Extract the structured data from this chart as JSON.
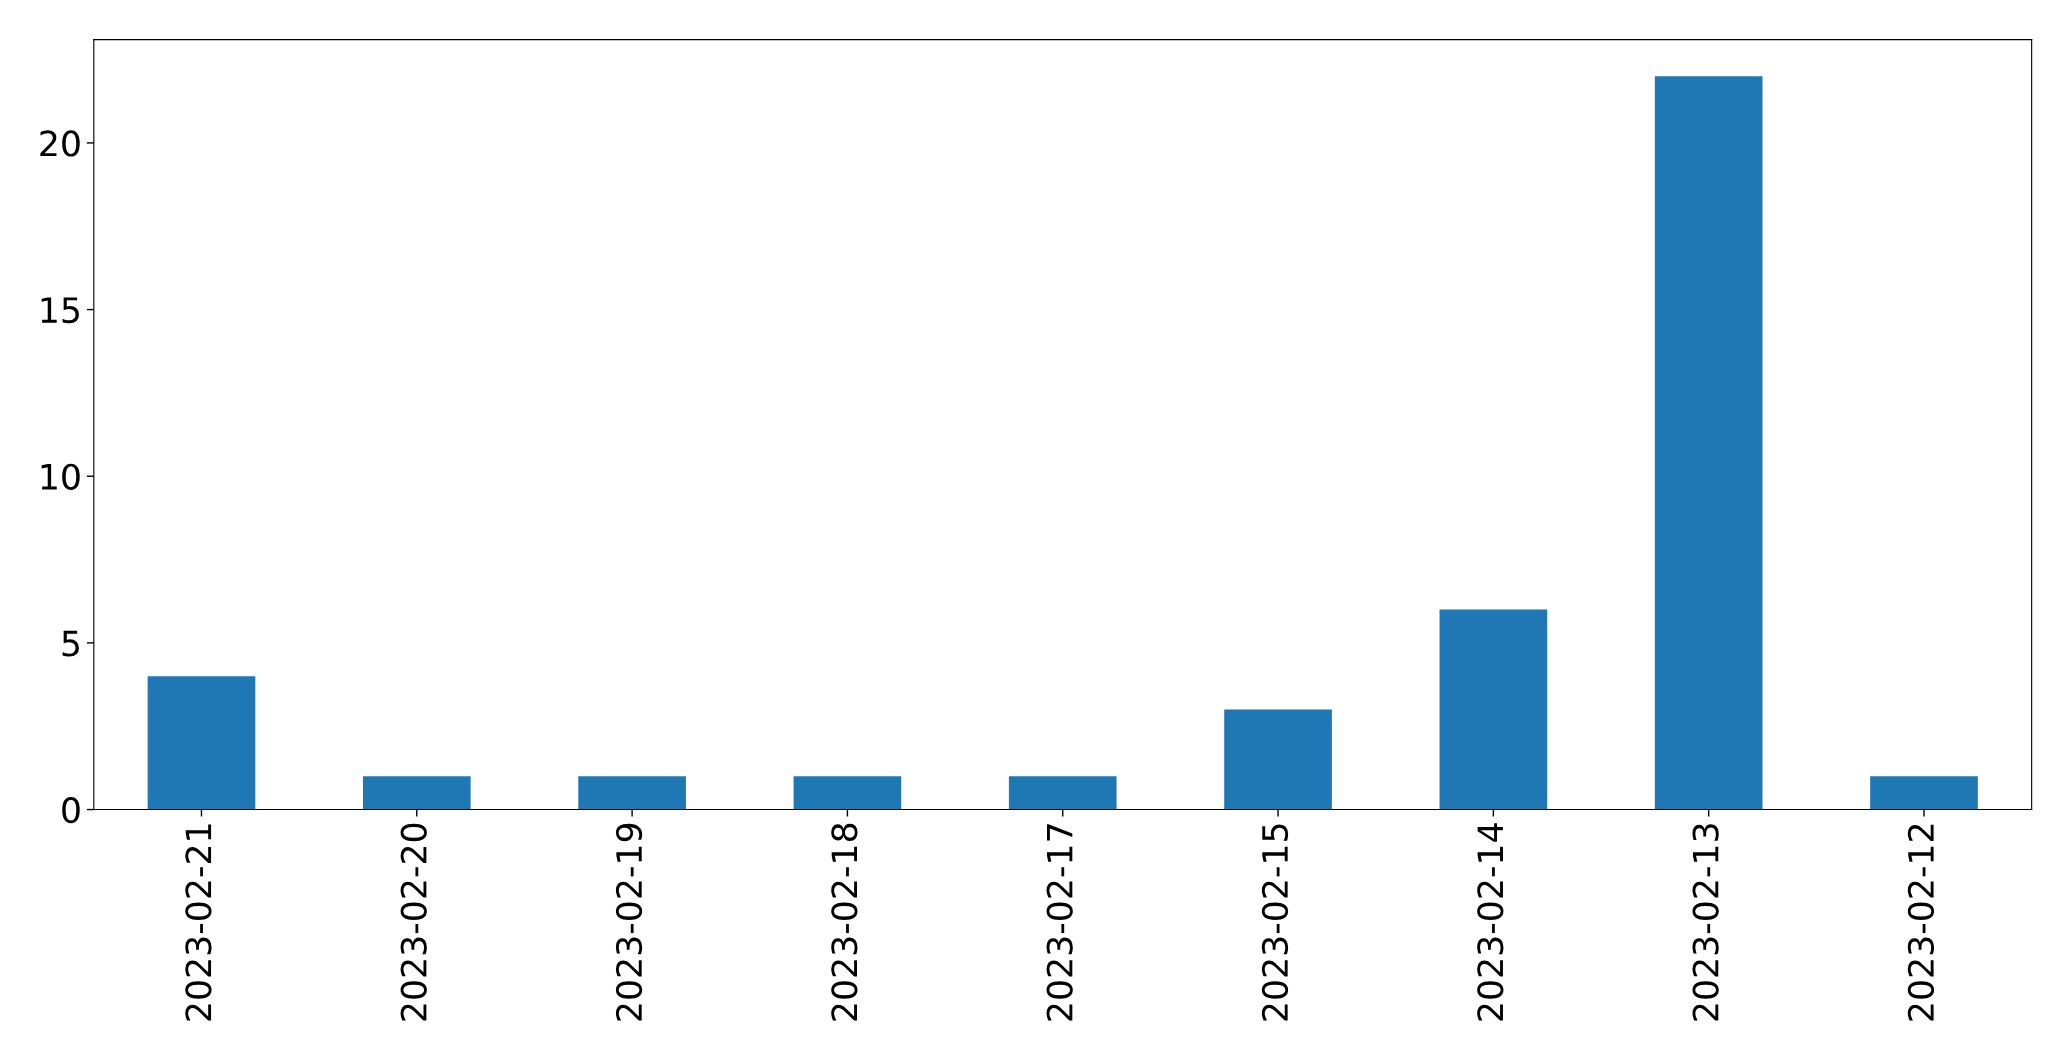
{
  "chart_data": {
    "type": "bar",
    "categories": [
      "2023-02-21",
      "2023-02-20",
      "2023-02-19",
      "2023-02-18",
      "2023-02-17",
      "2023-02-15",
      "2023-02-14",
      "2023-02-13",
      "2023-02-12"
    ],
    "values": [
      4,
      1,
      1,
      1,
      1,
      3,
      6,
      22,
      1
    ],
    "color": "#1f77b4",
    "ylim": [
      0,
      23.1
    ],
    "yticks": [
      0,
      5,
      10,
      15,
      20
    ],
    "grid": false,
    "legend": false
  }
}
